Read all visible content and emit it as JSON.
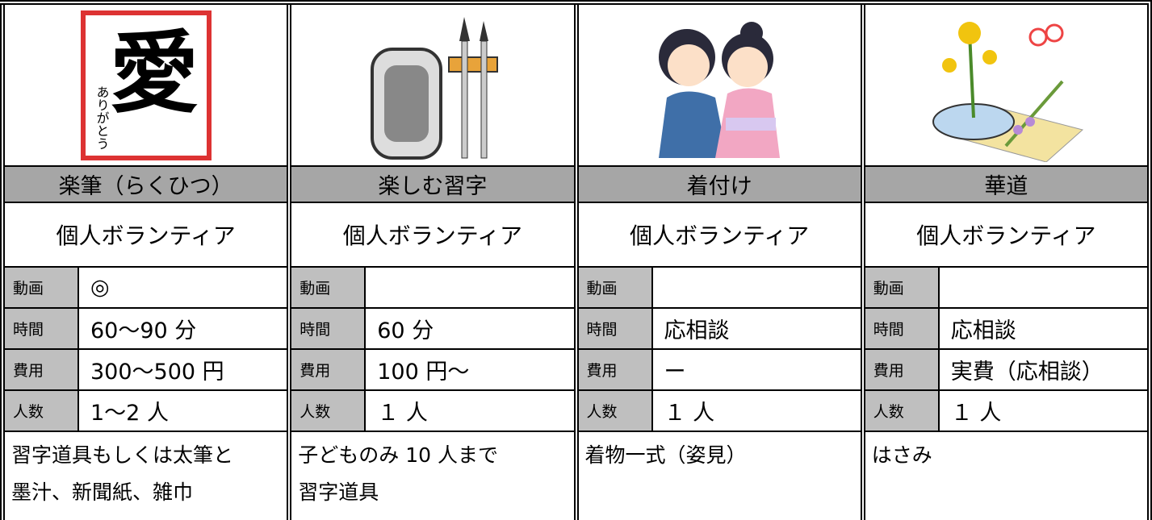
{
  "cards": [
    {
      "artwork": {
        "main": "愛",
        "sub": "ありがとう"
      },
      "title": "楽筆（らくひつ）",
      "type": "個人ボランティア",
      "details": [
        {
          "label": "動画",
          "value": "◎"
        },
        {
          "label": "時間",
          "value": "60～90 分"
        },
        {
          "label": "費用",
          "value": "300～500 円"
        },
        {
          "label": "人数",
          "value": "1～2 人"
        }
      ],
      "notes": [
        "習字道具もしくは太筆と",
        "墨汁、新聞紙、雑巾"
      ]
    },
    {
      "title": "楽しむ習字",
      "type": "個人ボランティア",
      "details": [
        {
          "label": "動画"
        },
        {
          "label": "時間",
          "value": "60 分"
        },
        {
          "label": "費用",
          "value": "100 円～"
        },
        {
          "label": "人数",
          "value": "１ 人"
        }
      ],
      "notes": [
        "子どものみ 10 人まで",
        "習字道具"
      ]
    },
    {
      "title": "着付け",
      "type": "個人ボランティア",
      "details": [
        {
          "label": "動画"
        },
        {
          "label": "時間",
          "value": "応相談"
        },
        {
          "label": "費用",
          "value": "ー"
        },
        {
          "label": "人数",
          "value": "１ 人"
        }
      ],
      "notes": [
        "着物一式（姿見）"
      ]
    },
    {
      "title": "華道",
      "type": "個人ボランティア",
      "details": [
        {
          "label": "動画"
        },
        {
          "label": "時間",
          "value": "応相談"
        },
        {
          "label": "費用",
          "value": "実費（応相談）"
        },
        {
          "label": "人数",
          "value": "１ 人"
        }
      ],
      "notes": [
        "はさみ"
      ]
    }
  ]
}
